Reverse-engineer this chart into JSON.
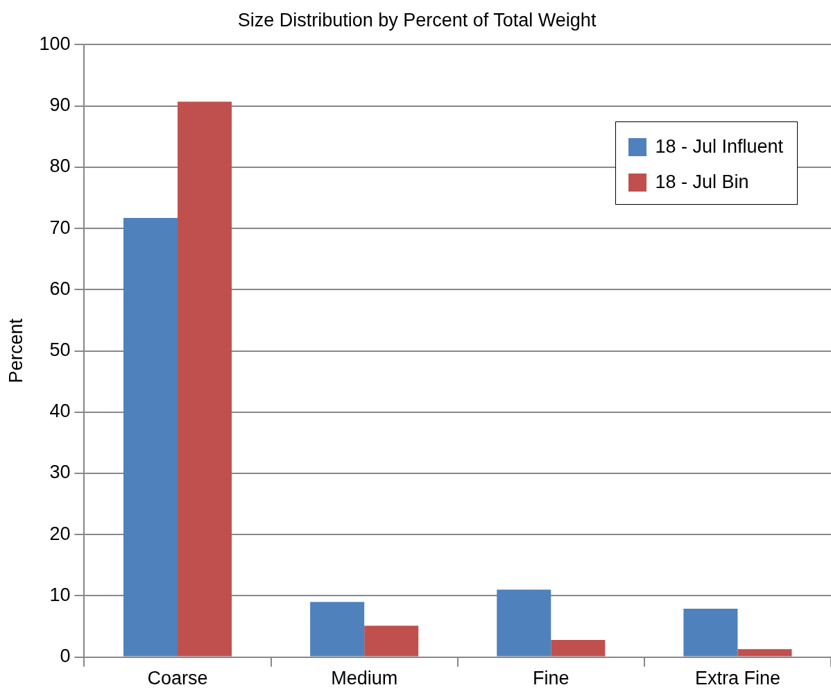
{
  "chart_data": {
    "type": "bar",
    "title": "Size Distribution by Percent of Total Weight",
    "ylabel": "Percent",
    "categories": [
      "Coarse",
      "Medium",
      "Fine",
      "Extra Fine"
    ],
    "series": [
      {
        "name": "18 - Jul Influent",
        "color": "#4f81bd",
        "values": [
          71.7,
          9.0,
          11.0,
          7.9
        ]
      },
      {
        "name": "18 - Jul Bin",
        "color": "#c0504d",
        "values": [
          90.7,
          5.1,
          2.8,
          1.3
        ]
      }
    ],
    "ylim": [
      0,
      100
    ],
    "yticks": [
      0,
      10,
      20,
      30,
      40,
      50,
      60,
      70,
      80,
      90,
      100
    ],
    "grid": "y",
    "legend": "top right"
  }
}
